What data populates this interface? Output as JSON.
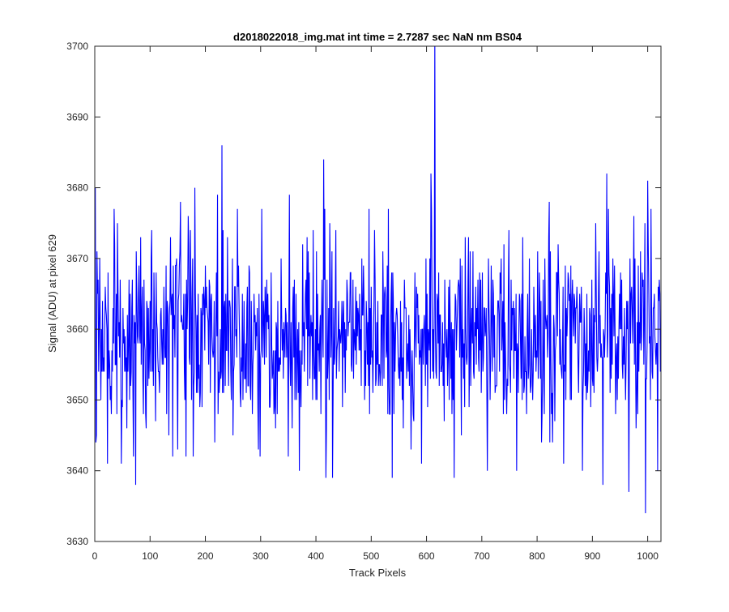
{
  "chart_data": {
    "type": "line",
    "title": "d2018022018_img.mat int time = 2.7287 sec  NaN nm BS04",
    "xlabel": "Track Pixels",
    "ylabel": "Signal (ADU) at pixel 629",
    "xlim": [
      0,
      1024
    ],
    "ylim": [
      3630,
      3700
    ],
    "xticks": [
      0,
      100,
      200,
      300,
      400,
      500,
      600,
      700,
      800,
      900,
      1000
    ],
    "yticks": [
      3630,
      3640,
      3650,
      3660,
      3670,
      3680,
      3690,
      3700
    ],
    "grid": false,
    "series_color": "#0000ff",
    "series": [
      {
        "n_points": 1024,
        "mean": 3659,
        "std": 6.5,
        "min": 3634,
        "max": 3703,
        "points": [
          [
            0,
            3660
          ],
          [
            1,
            3680
          ],
          [
            3,
            3645
          ],
          [
            5,
            3665
          ],
          [
            7,
            3654
          ],
          [
            9,
            3670
          ],
          [
            11,
            3650
          ],
          [
            20,
            3663
          ],
          [
            30,
            3648
          ],
          [
            35,
            3677
          ],
          [
            41,
            3675
          ],
          [
            50,
            3649
          ],
          [
            53,
            3660
          ],
          [
            58,
            3646
          ],
          [
            62,
            3667
          ],
          [
            65,
            3652
          ],
          [
            70,
            3642
          ],
          [
            74,
            3638
          ],
          [
            78,
            3658
          ],
          [
            83,
            3673
          ],
          [
            88,
            3648
          ],
          [
            100,
            3664
          ],
          [
            105,
            3660
          ],
          [
            110,
            3647
          ],
          [
            120,
            3663
          ],
          [
            130,
            3648
          ],
          [
            140,
            3665
          ],
          [
            150,
            3643
          ],
          [
            155,
            3678
          ],
          [
            160,
            3660
          ],
          [
            165,
            3642
          ],
          [
            170,
            3672
          ],
          [
            175,
            3650
          ],
          [
            181,
            3680
          ],
          [
            190,
            3649
          ],
          [
            200,
            3669
          ],
          [
            210,
            3664
          ],
          [
            217,
            3644
          ],
          [
            222,
            3679
          ],
          [
            226,
            3653
          ],
          [
            230,
            3686
          ],
          [
            236,
            3652
          ],
          [
            240,
            3673
          ],
          [
            250,
            3645
          ],
          [
            258,
            3677
          ],
          [
            264,
            3649
          ],
          [
            280,
            3668
          ],
          [
            290,
            3662
          ],
          [
            296,
            3643
          ],
          [
            302,
            3677
          ],
          [
            310,
            3656
          ],
          [
            320,
            3658
          ],
          [
            330,
            3648
          ],
          [
            337,
            3670
          ],
          [
            345,
            3663
          ],
          [
            352,
            3679
          ],
          [
            360,
            3656
          ],
          [
            370,
            3640
          ],
          [
            376,
            3672
          ],
          [
            383,
            3660
          ],
          [
            392,
            3659
          ],
          [
            400,
            3650
          ],
          [
            408,
            3662
          ],
          [
            414,
            3684
          ],
          [
            418,
            3639
          ],
          [
            423,
            3663
          ],
          [
            430,
            3639
          ],
          [
            436,
            3674
          ],
          [
            445,
            3658
          ],
          [
            455,
            3657
          ],
          [
            463,
            3668
          ],
          [
            470,
            3659
          ],
          [
            478,
            3657
          ],
          [
            485,
            3662
          ],
          [
            490,
            3652
          ],
          [
            500,
            3666
          ],
          [
            510,
            3661
          ],
          [
            520,
            3652
          ],
          [
            526,
            3664
          ],
          [
            534,
            3648
          ],
          [
            538,
            3639
          ],
          [
            542,
            3661
          ],
          [
            548,
            3659
          ],
          [
            556,
            3650
          ],
          [
            565,
            3656
          ],
          [
            570,
            3660
          ],
          [
            580,
            3659
          ],
          [
            590,
            3660
          ],
          [
            600,
            3655
          ],
          [
            608,
            3682
          ],
          [
            612,
            3660
          ],
          [
            615,
            3703
          ],
          [
            618,
            3653
          ],
          [
            625,
            3662
          ],
          [
            635,
            3658
          ],
          [
            643,
            3660
          ],
          [
            650,
            3639
          ],
          [
            658,
            3667
          ],
          [
            665,
            3656
          ],
          [
            670,
            3673
          ],
          [
            680,
            3652
          ],
          [
            690,
            3655
          ],
          [
            700,
            3658
          ],
          [
            710,
            3640
          ],
          [
            718,
            3661
          ],
          [
            725,
            3652
          ],
          [
            735,
            3670
          ],
          [
            745,
            3648
          ],
          [
            755,
            3663
          ],
          [
            763,
            3640
          ],
          [
            772,
            3665
          ],
          [
            780,
            3654
          ],
          [
            790,
            3660
          ],
          [
            800,
            3656
          ],
          [
            808,
            3644
          ],
          [
            815,
            3662
          ],
          [
            822,
            3678
          ],
          [
            828,
            3644
          ],
          [
            834,
            3658
          ],
          [
            840,
            3665
          ],
          [
            848,
            3641
          ],
          [
            855,
            3662
          ],
          [
            860,
            3650
          ],
          [
            868,
            3664
          ],
          [
            875,
            3651
          ],
          [
            882,
            3640
          ],
          [
            890,
            3665
          ],
          [
            900,
            3653
          ],
          [
            906,
            3675
          ],
          [
            913,
            3658
          ],
          [
            919,
            3638
          ],
          [
            926,
            3682
          ],
          [
            932,
            3651
          ],
          [
            938,
            3665
          ],
          [
            945,
            3650
          ],
          [
            952,
            3660
          ],
          [
            960,
            3650
          ],
          [
            966,
            3637
          ],
          [
            970,
            3665
          ],
          [
            975,
            3676
          ],
          [
            982,
            3648
          ],
          [
            990,
            3668
          ],
          [
            996,
            3634
          ],
          [
            1000,
            3681
          ],
          [
            1005,
            3650
          ],
          [
            1010,
            3663
          ],
          [
            1015,
            3655
          ],
          [
            1018,
            3640
          ],
          [
            1021,
            3667
          ],
          [
            1023,
            3654
          ]
        ]
      }
    ]
  }
}
